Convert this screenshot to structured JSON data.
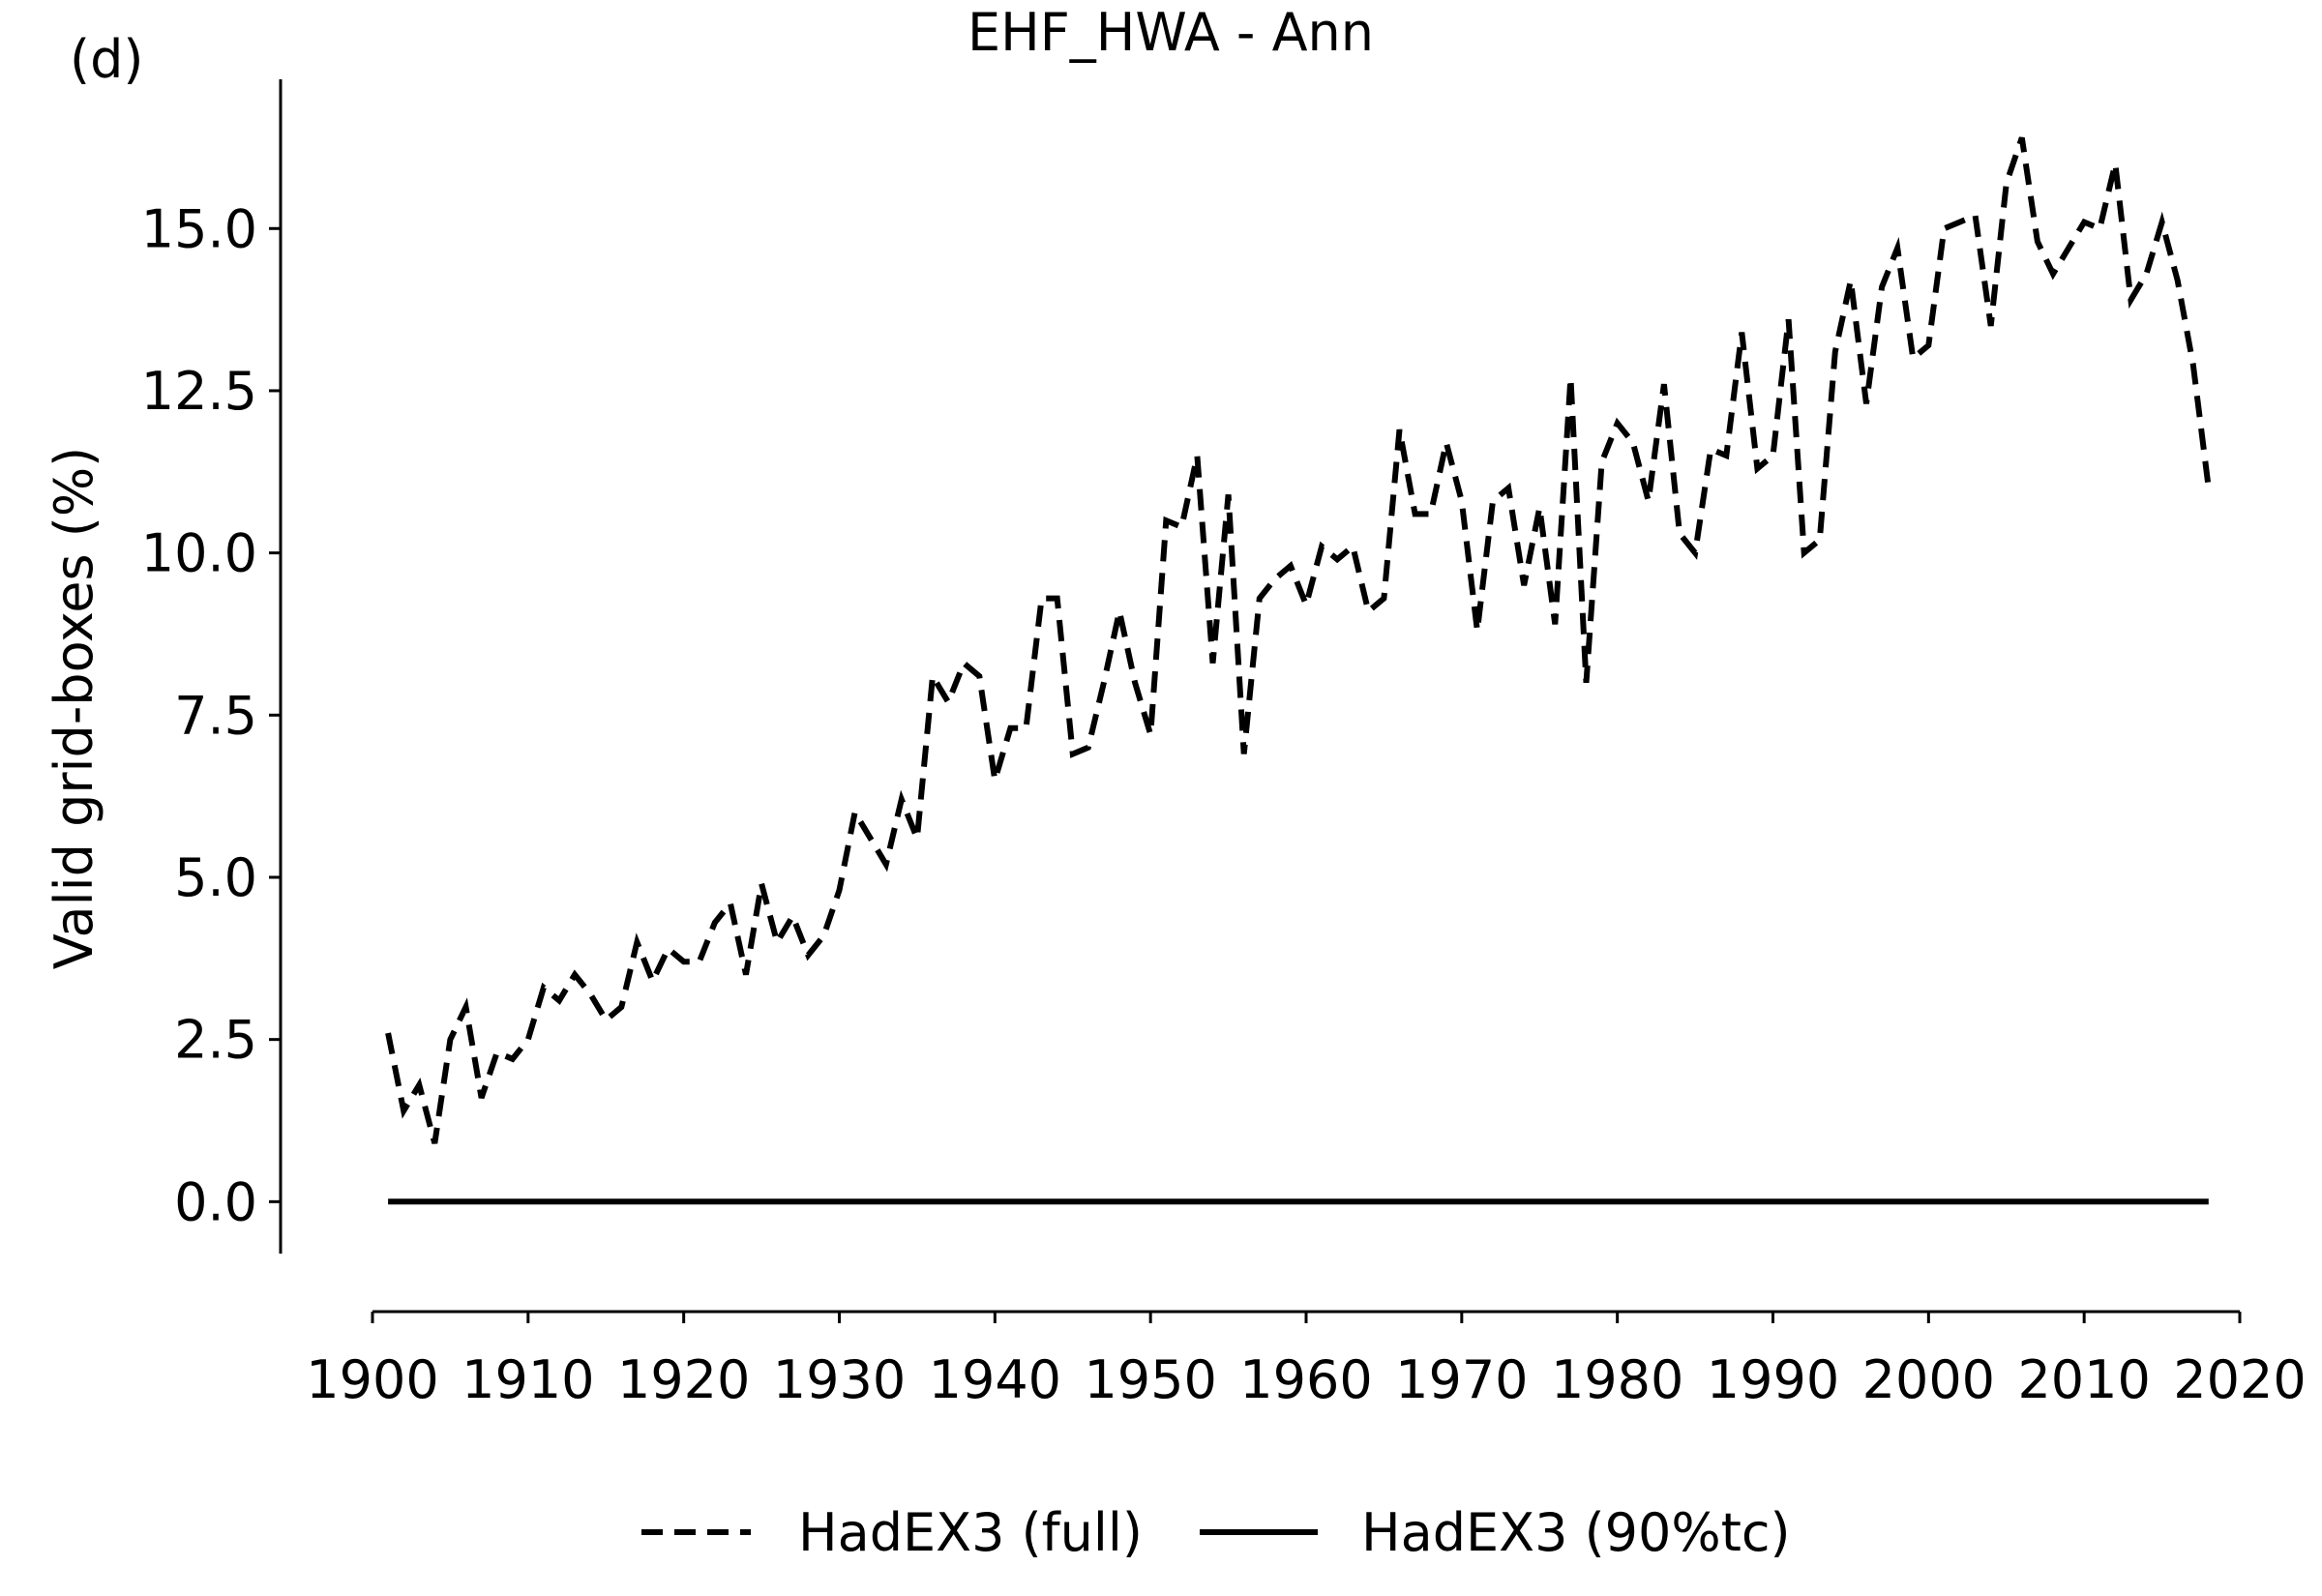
{
  "panel_label": "(d)",
  "chart_data": {
    "type": "line",
    "title": "EHF_HWA - Ann",
    "xlabel": "",
    "ylabel": "Valid grid-boxes (%)",
    "xlim": [
      1900,
      2020
    ],
    "ylim": [
      -0.8,
      17.3
    ],
    "x_ticks": [
      1900,
      1910,
      1920,
      1930,
      1940,
      1950,
      1960,
      1970,
      1980,
      1990,
      2000,
      2010,
      2020
    ],
    "y_ticks": [
      0.0,
      2.5,
      5.0,
      7.5,
      10.0,
      12.5,
      15.0
    ],
    "y_tick_labels": [
      "0.0",
      "2.5",
      "5.0",
      "7.5",
      "10.0",
      "12.5",
      "15.0"
    ],
    "grid": false,
    "legend_position": "bottom-center",
    "series": [
      {
        "name": "HadEX3 (full)",
        "style": "dashed",
        "color": "#000000",
        "x_start": 1901,
        "values": [
          2.6,
          1.4,
          1.8,
          0.9,
          2.5,
          3.0,
          1.6,
          2.3,
          2.2,
          2.5,
          3.3,
          3.1,
          3.5,
          3.2,
          2.8,
          3.0,
          4.0,
          3.4,
          3.9,
          3.7,
          3.7,
          4.3,
          4.6,
          3.5,
          4.9,
          4.0,
          4.4,
          3.8,
          4.1,
          4.8,
          6.0,
          5.6,
          5.2,
          6.2,
          5.6,
          8.1,
          7.7,
          8.3,
          8.1,
          6.5,
          7.3,
          7.3,
          9.3,
          9.3,
          6.9,
          7.0,
          8.0,
          9.1,
          8.0,
          7.2,
          10.5,
          10.4,
          11.5,
          8.3,
          10.9,
          6.9,
          9.3,
          9.6,
          9.8,
          9.2,
          10.1,
          9.9,
          10.1,
          9.1,
          9.3,
          11.9,
          10.6,
          10.6,
          11.7,
          10.8,
          8.8,
          10.8,
          11.0,
          9.5,
          10.7,
          8.9,
          12.7,
          8.0,
          11.4,
          12.0,
          11.7,
          10.8,
          12.6,
          10.3,
          10.0,
          11.6,
          11.5,
          13.4,
          11.3,
          11.5,
          13.6,
          10.0,
          10.2,
          13.1,
          14.2,
          12.3,
          14.1,
          14.7,
          13.0,
          13.2,
          15.0,
          15.1,
          15.2,
          13.5,
          15.7,
          16.4,
          14.8,
          14.3,
          14.7,
          15.1,
          15.0,
          16.0,
          13.9,
          14.3,
          15.1,
          14.2,
          12.9,
          11.0
        ]
      },
      {
        "name": "HadEX3 (90%tc)",
        "style": "solid",
        "color": "#000000",
        "x_start": 1901,
        "x_end": 2018,
        "constant_value": 0.0
      }
    ]
  }
}
